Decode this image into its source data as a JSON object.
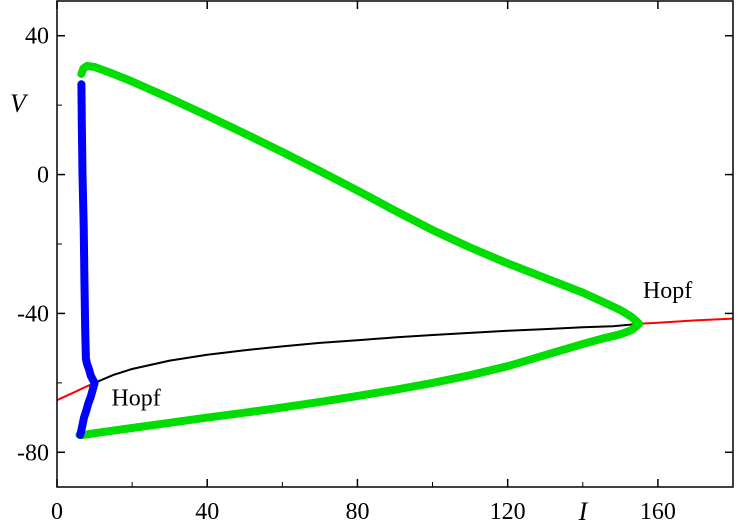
{
  "chart_data": {
    "type": "line",
    "title": "",
    "xlabel": "I",
    "ylabel": "V",
    "xlim": [
      0,
      180
    ],
    "ylim": [
      -90,
      50
    ],
    "grid": false,
    "legend": "none",
    "x_ticks": [
      0,
      40,
      80,
      120,
      160
    ],
    "y_ticks": [
      -80,
      -40,
      0,
      40
    ],
    "x_tick_labels": [
      "0",
      "40",
      "80",
      "120",
      "160"
    ],
    "y_tick_labels": [
      "-80",
      "-40",
      "0",
      "40"
    ],
    "colors": {
      "stable_rest": "#ff0000",
      "unstable_rest": "#000000",
      "stable_cycle": "#00dd00",
      "unstable_cycle": "#0000ff"
    },
    "series": [
      {
        "key": "stable_rest_low",
        "x": [
          0,
          2,
          4,
          6,
          8,
          10
        ],
        "y": [
          -65.0,
          -64.0,
          -63.0,
          -62.0,
          -61.0,
          -60.0
        ]
      },
      {
        "key": "unstable_rest",
        "x": [
          10,
          15,
          20,
          30,
          40,
          50,
          60,
          70,
          80,
          90,
          100,
          110,
          120,
          130,
          140,
          148,
          155
        ],
        "y": [
          -60.0,
          -57.7,
          -56.0,
          -53.6,
          -51.9,
          -50.6,
          -49.5,
          -48.5,
          -47.7,
          -46.9,
          -46.2,
          -45.6,
          -45.0,
          -44.5,
          -44.0,
          -43.7,
          -43.0
        ]
      },
      {
        "key": "stable_rest_high",
        "x": [
          155,
          160,
          170,
          180
        ],
        "y": [
          -43.0,
          -42.7,
          -42.0,
          -41.5
        ]
      },
      {
        "key": "stable_cycle_max",
        "x": [
          6.5,
          7,
          8,
          10,
          15,
          20,
          30,
          40,
          50,
          60,
          70,
          80,
          90,
          100,
          110,
          120,
          130,
          140,
          145,
          150,
          153,
          155
        ],
        "y": [
          29.0,
          30.5,
          31.3,
          31.0,
          29.0,
          26.8,
          22.0,
          17.0,
          11.8,
          6.5,
          1.0,
          -4.6,
          -10.4,
          -16.0,
          -21.0,
          -25.6,
          -29.8,
          -34.0,
          -36.5,
          -39.0,
          -41.0,
          -43.0
        ]
      },
      {
        "key": "stable_cycle_min",
        "x": [
          6,
          7,
          10,
          20,
          30,
          40,
          50,
          60,
          70,
          80,
          90,
          100,
          110,
          120,
          130,
          140,
          145,
          150,
          153,
          155
        ],
        "y": [
          -75.0,
          -75.0,
          -74.5,
          -73.0,
          -71.5,
          -70.0,
          -68.6,
          -67.1,
          -65.5,
          -63.8,
          -62.0,
          -60.0,
          -57.8,
          -55.2,
          -52.0,
          -48.8,
          -47.3,
          -46.0,
          -44.8,
          -43.0
        ]
      },
      {
        "key": "unstable_cycle",
        "x": [
          6.5,
          6.6,
          6.8,
          7.1,
          7.3,
          7.5,
          7.7,
          8.0,
          8.5,
          9.0,
          10.0,
          9.5,
          9.0,
          8.3,
          7.8,
          7.2,
          6.7,
          6.2
        ],
        "y": [
          26.0,
          15.0,
          0.0,
          -15.0,
          -30.0,
          -45.0,
          -53.0,
          -54.5,
          -56.0,
          -58.0,
          -60.0,
          -62.0,
          -64.0,
          -66.0,
          -68.0,
          -70.0,
          -72.5,
          -75.0
        ]
      }
    ],
    "annotations": [
      {
        "text": "Hopf",
        "x": 156,
        "y": -35.5
      },
      {
        "text": "Hopf",
        "x": 14.5,
        "y": -66.5
      }
    ]
  }
}
